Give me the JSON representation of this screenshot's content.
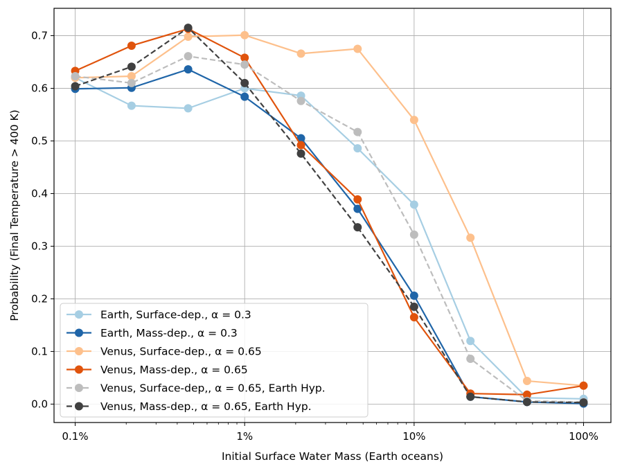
{
  "chart_data": {
    "type": "line",
    "xscale": "log",
    "xlabel": "Initial Surface Water Mass (Earth oceans)",
    "ylabel": "Probability (Final Temperature > 400 K)",
    "xlim": [
      0.00075,
      1.45
    ],
    "ylim": [
      -0.035,
      0.752
    ],
    "grid": true,
    "legend_position": "lower-left",
    "x_ticks": [
      {
        "value": 0.001,
        "label": "0.1%"
      },
      {
        "value": 0.01,
        "label": "1%"
      },
      {
        "value": 0.1,
        "label": "10%"
      },
      {
        "value": 1.0,
        "label": "100%"
      }
    ],
    "y_ticks": [
      {
        "value": 0.0,
        "label": "0.0"
      },
      {
        "value": 0.1,
        "label": "0.1"
      },
      {
        "value": 0.2,
        "label": "0.2"
      },
      {
        "value": 0.3,
        "label": "0.3"
      },
      {
        "value": 0.4,
        "label": "0.4"
      },
      {
        "value": 0.5,
        "label": "0.5"
      },
      {
        "value": 0.6,
        "label": "0.6"
      },
      {
        "value": 0.7,
        "label": "0.7"
      }
    ],
    "x": [
      0.001,
      0.00215,
      0.00464,
      0.01,
      0.0215,
      0.0464,
      0.1,
      0.215,
      0.464,
      1.0
    ],
    "series": [
      {
        "name": "Earth, Surface-dep., α = 0.3",
        "color": "#a6cee3",
        "dash": "solid",
        "values": [
          0.62,
          0.567,
          0.562,
          0.6,
          0.586,
          0.486,
          0.379,
          0.12,
          0.012,
          0.01
        ]
      },
      {
        "name": "Earth, Mass-dep., α = 0.3",
        "color": "#1f65a8",
        "dash": "solid",
        "values": [
          0.599,
          0.601,
          0.636,
          0.584,
          0.505,
          0.371,
          0.206,
          0.014,
          0.004,
          0.001
        ]
      },
      {
        "name": "Venus, Surface-dep., α = 0.65",
        "color": "#fdc08c",
        "dash": "solid",
        "values": [
          0.62,
          0.623,
          0.698,
          0.701,
          0.666,
          0.675,
          0.54,
          0.316,
          0.044,
          0.035
        ]
      },
      {
        "name": "Venus, Mass-dep., α = 0.65",
        "color": "#e0530c",
        "dash": "solid",
        "values": [
          0.633,
          0.681,
          0.713,
          0.658,
          0.492,
          0.389,
          0.165,
          0.02,
          0.018,
          0.035
        ]
      },
      {
        "name": "Venus, Surface-dep,, α = 0.65, Earth Hyp.",
        "color": "#bdbdbd",
        "dash": "dashed",
        "values": [
          0.623,
          0.61,
          0.661,
          0.645,
          0.576,
          0.517,
          0.322,
          0.086,
          0.006,
          0.004
        ]
      },
      {
        "name": "Venus, Mass-dep., α = 0.65, Earth Hyp.",
        "color": "#404040",
        "dash": "dashed",
        "values": [
          0.604,
          0.641,
          0.715,
          0.61,
          0.476,
          0.336,
          0.185,
          0.014,
          0.004,
          0.003
        ]
      }
    ]
  }
}
